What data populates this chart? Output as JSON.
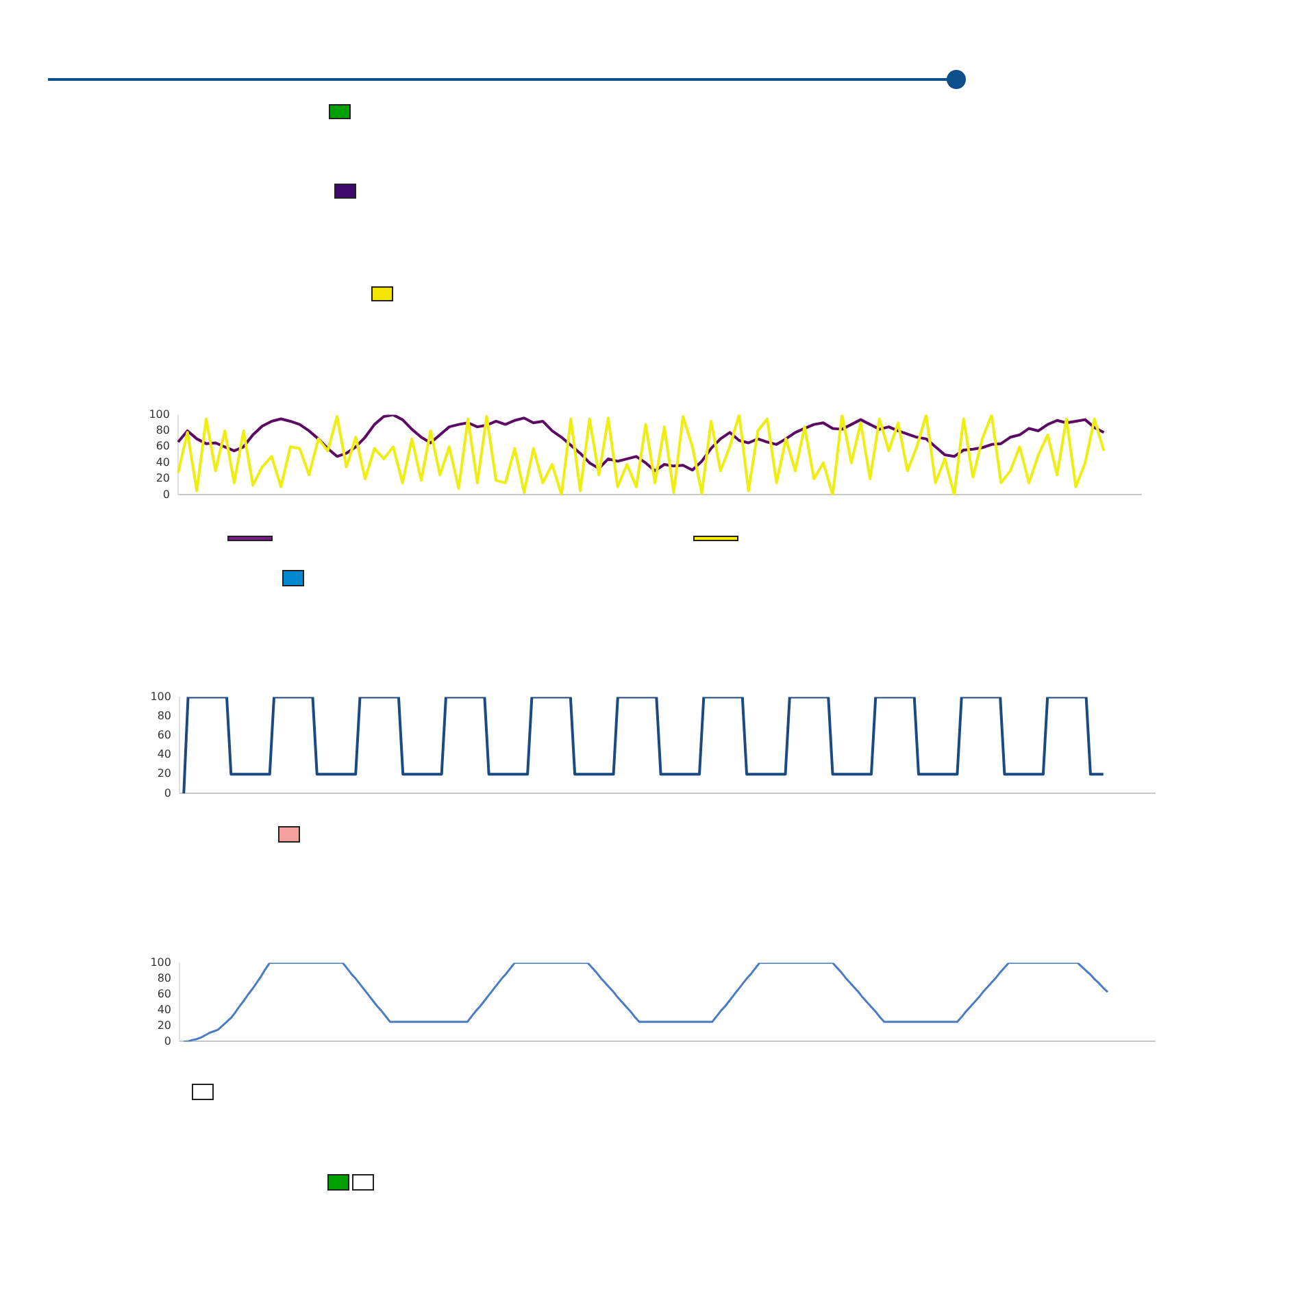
{
  "chart_data": [
    {
      "type": "line",
      "marker": "none",
      "tick_labels": "y",
      "ylim": [
        0,
        100
      ],
      "yticks": [
        0,
        20,
        40,
        60,
        80,
        100
      ],
      "categories": [
        null,
        null,
        null,
        null,
        null,
        null,
        null,
        null,
        null,
        null,
        null,
        null,
        null,
        null,
        null,
        null,
        null,
        null,
        null,
        null,
        null,
        null,
        null,
        null,
        null,
        null,
        null,
        null,
        null,
        null,
        null,
        null,
        null,
        null,
        null,
        null,
        null,
        null,
        null,
        null,
        null,
        null,
        null,
        null,
        null,
        null,
        null,
        null,
        null,
        null,
        null,
        null,
        null,
        null,
        null,
        null,
        null,
        null,
        null,
        null,
        null,
        null,
        null,
        null,
        null,
        null,
        null,
        null,
        null,
        null,
        null,
        null,
        null,
        null,
        null,
        null,
        null,
        null,
        null,
        null,
        null,
        null,
        null,
        null,
        null,
        null,
        null,
        null,
        null,
        null,
        null,
        null,
        null,
        null,
        null,
        null,
        null,
        null,
        null,
        null,
        null,
        null,
        null,
        null
      ],
      "series": [
        {
          "color": "#eeee10",
          "values": [
            28,
            78,
            5,
            95,
            30,
            80,
            15,
            80,
            12,
            35,
            48,
            10,
            60,
            58,
            25,
            70,
            55,
            98,
            35,
            72,
            20,
            58,
            45,
            60,
            15,
            70,
            18,
            80,
            25,
            60,
            8,
            95,
            15,
            98,
            18,
            15,
            58,
            3,
            58,
            15,
            38,
            0,
            95,
            5,
            95,
            25,
            96,
            10,
            38,
            10,
            88,
            15,
            85,
            3,
            98,
            60,
            2,
            92,
            30,
            60,
            100,
            5,
            80,
            95,
            15,
            70,
            30,
            85,
            20,
            40,
            0,
            100,
            40,
            90,
            20,
            95,
            55,
            90,
            30,
            60,
            100,
            15,
            45,
            0,
            95,
            22,
            70,
            100,
            15,
            30,
            60,
            15,
            50,
            75,
            25,
            95,
            10,
            40,
            95,
            55,
            null,
            null,
            null,
            null
          ]
        },
        {
          "color": "#5c0a63",
          "values": [
            66,
            80,
            70,
            64,
            65,
            60,
            55,
            60,
            75,
            86,
            92,
            95,
            92,
            88,
            80,
            70,
            58,
            48,
            52,
            60,
            72,
            88,
            98,
            100,
            94,
            82,
            72,
            65,
            75,
            85,
            88,
            90,
            85,
            87,
            92,
            88,
            93,
            96,
            90,
            92,
            80,
            72,
            62,
            52,
            40,
            33,
            45,
            42,
            45,
            48,
            40,
            30,
            38,
            36,
            37,
            31,
            42,
            58,
            70,
            78,
            68,
            65,
            70,
            66,
            63,
            70,
            78,
            83,
            88,
            90,
            83,
            82,
            88,
            94,
            88,
            82,
            85,
            80,
            76,
            72,
            70,
            60,
            50,
            48,
            56,
            57,
            59,
            63,
            64,
            72,
            75,
            83,
            80,
            88,
            93,
            90,
            92,
            94,
            84,
            78,
            null,
            null,
            null,
            null
          ]
        }
      ]
    },
    {
      "type": "line",
      "marker": "none",
      "tick_labels": "y",
      "ylim": [
        0,
        100
      ],
      "yticks": [
        0,
        20,
        40,
        60,
        80,
        100
      ],
      "categories": [
        null,
        null,
        null,
        null,
        null,
        null,
        null,
        null,
        null,
        null,
        null,
        null,
        null,
        null,
        null,
        null,
        null,
        null,
        null,
        null,
        null,
        null,
        null,
        null,
        null,
        null,
        null,
        null,
        null,
        null,
        null,
        null,
        null,
        null,
        null,
        null,
        null,
        null,
        null,
        null,
        null,
        null,
        null,
        null,
        null,
        null,
        null,
        null,
        null,
        null,
        null,
        null,
        null,
        null,
        null,
        null,
        null,
        null,
        null,
        null,
        null,
        null,
        null,
        null,
        null,
        null,
        null,
        null,
        null,
        null,
        null,
        null,
        null,
        null,
        null,
        null,
        null,
        null,
        null,
        null,
        null,
        null,
        null,
        null,
        null,
        null,
        null,
        null,
        null,
        null,
        null,
        null,
        null,
        null,
        null,
        null,
        null,
        null,
        null,
        null,
        null,
        null,
        null,
        null,
        null,
        null,
        null,
        null,
        null,
        null,
        null,
        null,
        null,
        null,
        null,
        null,
        null,
        null,
        null,
        null,
        null,
        null,
        null,
        null,
        null,
        null,
        null,
        null,
        null,
        null,
        null,
        null,
        null,
        null,
        null,
        null,
        null,
        null,
        null,
        null,
        null,
        null,
        null,
        null,
        null,
        null,
        null,
        null,
        null,
        null,
        null,
        null,
        null,
        null,
        null,
        null,
        null,
        null,
        null,
        null,
        null,
        null,
        null,
        null,
        null,
        null,
        null,
        null,
        null,
        null,
        null,
        null,
        null,
        null,
        null,
        null,
        null,
        null,
        null,
        null,
        null,
        null,
        null,
        null,
        null,
        null,
        null,
        null,
        null,
        null,
        null,
        null,
        null,
        null,
        null,
        null,
        null,
        null,
        null,
        null,
        null,
        null,
        null,
        null,
        null,
        null,
        null,
        null,
        null,
        null,
        null,
        null,
        null,
        null,
        null,
        null,
        null,
        null,
        null,
        null,
        null,
        null,
        null,
        null,
        null,
        null,
        null,
        null
      ],
      "series": [
        {
          "color": "#1b4a80",
          "values": [
            null,
            0,
            100,
            100,
            100,
            100,
            100,
            100,
            100,
            100,
            100,
            100,
            20,
            20,
            20,
            20,
            20,
            20,
            20,
            20,
            20,
            20,
            100,
            100,
            100,
            100,
            100,
            100,
            100,
            100,
            100,
            100,
            20,
            20,
            20,
            20,
            20,
            20,
            20,
            20,
            20,
            20,
            100,
            100,
            100,
            100,
            100,
            100,
            100,
            100,
            100,
            100,
            20,
            20,
            20,
            20,
            20,
            20,
            20,
            20,
            20,
            20,
            100,
            100,
            100,
            100,
            100,
            100,
            100,
            100,
            100,
            100,
            20,
            20,
            20,
            20,
            20,
            20,
            20,
            20,
            20,
            20,
            100,
            100,
            100,
            100,
            100,
            100,
            100,
            100,
            100,
            100,
            20,
            20,
            20,
            20,
            20,
            20,
            20,
            20,
            20,
            20,
            100,
            100,
            100,
            100,
            100,
            100,
            100,
            100,
            100,
            100,
            20,
            20,
            20,
            20,
            20,
            20,
            20,
            20,
            20,
            20,
            100,
            100,
            100,
            100,
            100,
            100,
            100,
            100,
            100,
            100,
            20,
            20,
            20,
            20,
            20,
            20,
            20,
            20,
            20,
            20,
            100,
            100,
            100,
            100,
            100,
            100,
            100,
            100,
            100,
            100,
            20,
            20,
            20,
            20,
            20,
            20,
            20,
            20,
            20,
            20,
            100,
            100,
            100,
            100,
            100,
            100,
            100,
            100,
            100,
            100,
            20,
            20,
            20,
            20,
            20,
            20,
            20,
            20,
            20,
            20,
            100,
            100,
            100,
            100,
            100,
            100,
            100,
            100,
            100,
            100,
            20,
            20,
            20,
            20,
            20,
            20,
            20,
            20,
            20,
            20,
            100,
            100,
            100,
            100,
            100,
            100,
            100,
            100,
            100,
            100,
            20,
            20,
            20,
            20,
            null,
            null,
            null,
            null,
            null,
            null,
            null,
            null,
            null,
            null,
            null,
            null
          ]
        }
      ]
    },
    {
      "type": "line",
      "marker": "none",
      "tick_labels": "y",
      "ylim": [
        0,
        100
      ],
      "yticks": [
        0,
        20,
        40,
        60,
        80,
        100
      ],
      "categories": [
        null,
        null,
        null,
        null,
        null,
        null,
        null,
        null,
        null,
        null,
        null,
        null,
        null,
        null,
        null,
        null,
        null,
        null,
        null,
        null,
        null,
        null,
        null,
        null,
        null,
        null,
        null,
        null,
        null,
        null,
        null,
        null,
        null,
        null,
        null,
        null,
        null,
        null,
        null,
        null,
        null,
        null,
        null,
        null,
        null,
        null,
        null,
        null,
        null,
        null,
        null,
        null,
        null,
        null,
        null,
        null,
        null,
        null,
        null,
        null,
        null,
        null,
        null,
        null,
        null,
        null,
        null,
        null,
        null,
        null,
        null,
        null,
        null,
        null,
        null,
        null,
        null,
        null,
        null,
        null,
        null,
        null,
        null,
        null,
        null,
        null,
        null,
        null,
        null,
        null,
        null,
        null,
        null,
        null,
        null,
        null,
        null,
        null,
        null,
        null,
        null,
        null,
        null,
        null,
        null,
        null,
        null,
        null,
        null,
        null,
        null,
        null,
        null,
        null,
        null,
        null,
        null,
        null,
        null,
        null,
        null,
        null,
        null,
        null,
        null,
        null,
        null,
        null,
        null,
        null,
        null,
        null,
        null,
        null,
        null,
        null,
        null,
        null,
        null,
        null,
        null,
        null,
        null,
        null,
        null,
        null,
        null,
        null,
        null,
        null,
        null,
        null,
        null,
        null,
        null,
        null,
        null,
        null,
        null,
        null,
        null,
        null,
        null,
        null,
        null,
        null,
        null,
        null,
        null,
        null,
        null,
        null,
        null,
        null,
        null,
        null,
        null,
        null,
        null,
        null,
        null,
        null,
        null,
        null,
        null,
        null,
        null,
        null,
        null,
        null,
        null,
        null,
        null,
        null,
        null,
        null,
        null,
        null,
        null,
        null,
        null,
        null,
        null,
        null,
        null,
        null,
        null,
        null,
        null,
        null,
        null,
        null,
        null,
        null,
        null,
        null,
        null,
        null,
        null,
        null,
        null,
        null,
        null,
        null,
        null,
        null,
        null,
        null
      ],
      "series": [
        {
          "color": "#4a7cc4",
          "values": [
            null,
            0,
            0,
            2,
            3,
            5,
            8,
            11,
            13,
            15,
            20,
            25,
            30,
            37,
            45,
            52,
            60,
            67,
            75,
            83,
            92,
            100,
            100,
            100,
            100,
            100,
            100,
            100,
            100,
            100,
            100,
            100,
            100,
            100,
            100,
            100,
            100,
            100,
            100,
            93,
            86,
            80,
            73,
            66,
            59,
            52,
            45,
            39,
            32,
            25,
            25,
            25,
            25,
            25,
            25,
            25,
            25,
            25,
            25,
            25,
            25,
            25,
            25,
            25,
            25,
            25,
            25,
            25,
            32,
            39,
            45,
            52,
            59,
            66,
            73,
            80,
            86,
            93,
            100,
            100,
            100,
            100,
            100,
            100,
            100,
            100,
            100,
            100,
            100,
            100,
            100,
            100,
            100,
            100,
            100,
            100,
            94,
            88,
            81,
            75,
            69,
            63,
            56,
            50,
            44,
            38,
            31,
            25,
            25,
            25,
            25,
            25,
            25,
            25,
            25,
            25,
            25,
            25,
            25,
            25,
            25,
            25,
            25,
            25,
            25,
            32,
            39,
            45,
            52,
            59,
            66,
            73,
            80,
            86,
            93,
            100,
            100,
            100,
            100,
            100,
            100,
            100,
            100,
            100,
            100,
            100,
            100,
            100,
            100,
            100,
            100,
            100,
            100,
            94,
            88,
            81,
            75,
            69,
            63,
            56,
            50,
            44,
            38,
            31,
            25,
            25,
            25,
            25,
            25,
            25,
            25,
            25,
            25,
            25,
            25,
            25,
            25,
            25,
            25,
            25,
            25,
            25,
            31,
            38,
            44,
            50,
            56,
            63,
            69,
            75,
            81,
            88,
            94,
            100,
            100,
            100,
            100,
            100,
            100,
            100,
            100,
            100,
            100,
            100,
            100,
            100,
            100,
            100,
            100,
            100,
            95,
            90,
            85,
            79,
            74,
            68,
            63,
            null,
            null,
            null,
            null,
            null,
            null,
            null,
            null,
            null,
            null,
            null
          ]
        }
      ]
    }
  ]
}
